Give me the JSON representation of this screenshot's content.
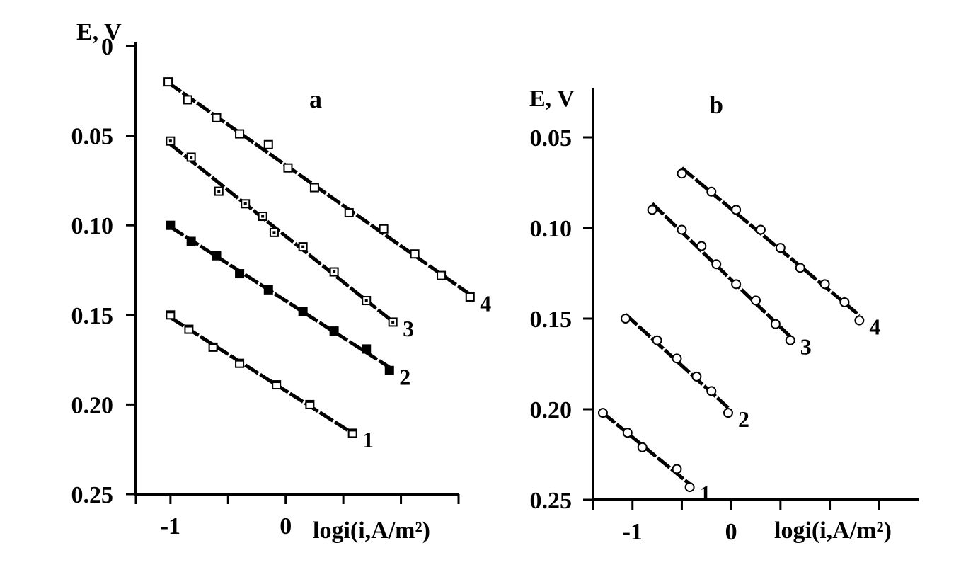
{
  "chart_data": [
    {
      "type": "scatter",
      "panel": "a",
      "title": "",
      "xlabel": "logi(i,A/m²)",
      "ylabel": "E, V",
      "xlim": [
        -1.3,
        1.5
      ],
      "ylim": [
        0,
        0.25
      ],
      "y_inverted": true,
      "x_ticks": [
        -1,
        0
      ],
      "x_tick_labels": [
        "-1",
        "0"
      ],
      "y_ticks": [
        0,
        0.05,
        0.1,
        0.15,
        0.2,
        0.25
      ],
      "y_tick_labels": [
        "0",
        "0.05",
        "0.10",
        "0.15",
        "0.20",
        "0.25"
      ],
      "grid": false,
      "series": [
        {
          "name": "1",
          "marker": "square-dot",
          "x": [
            -1.0,
            -0.84,
            -0.63,
            -0.4,
            -0.08,
            0.21,
            0.58
          ],
          "y": [
            0.15,
            0.158,
            0.168,
            0.177,
            0.189,
            0.2,
            0.216
          ]
        },
        {
          "name": "2",
          "marker": "square-filled",
          "x": [
            -1.0,
            -0.82,
            -0.6,
            -0.4,
            -0.15,
            0.15,
            0.42,
            0.7,
            0.9
          ],
          "y": [
            0.1,
            0.109,
            0.117,
            0.127,
            0.136,
            0.148,
            0.159,
            0.169,
            0.181
          ]
        },
        {
          "name": "3",
          "marker": "square-center",
          "x": [
            -1.0,
            -0.82,
            -0.58,
            -0.35,
            -0.2,
            -0.1,
            0.15,
            0.42,
            0.7,
            0.93
          ],
          "y": [
            0.053,
            0.062,
            0.081,
            0.088,
            0.095,
            0.104,
            0.112,
            0.126,
            0.142,
            0.154
          ]
        },
        {
          "name": "4",
          "marker": "square-open",
          "x": [
            -1.02,
            -0.85,
            -0.6,
            -0.4,
            -0.15,
            0.02,
            0.25,
            0.55,
            0.85,
            1.12,
            1.35,
            1.6
          ],
          "y": [
            0.02,
            0.03,
            0.04,
            0.049,
            0.055,
            0.068,
            0.079,
            0.093,
            0.102,
            0.116,
            0.128,
            0.14
          ]
        }
      ]
    },
    {
      "type": "scatter",
      "panel": "b",
      "title": "",
      "xlabel": "logi(i,A/m²)",
      "ylabel": "E, V",
      "xlim": [
        -1.4,
        1.9
      ],
      "ylim": [
        0.025,
        0.25
      ],
      "y_inverted": true,
      "x_ticks": [
        -1,
        0
      ],
      "x_tick_labels": [
        "-1",
        "0"
      ],
      "y_ticks": [
        0.05,
        0.1,
        0.15,
        0.2,
        0.25
      ],
      "y_tick_labels": [
        "0.05",
        "0.10",
        "0.15",
        "0.20",
        "0.25"
      ],
      "grid": false,
      "series": [
        {
          "name": "1",
          "marker": "circle-open",
          "x": [
            -1.3,
            -1.05,
            -0.9,
            -0.55,
            -0.42
          ],
          "y": [
            0.202,
            0.213,
            0.221,
            0.233,
            0.243
          ]
        },
        {
          "name": "2",
          "marker": "circle-open",
          "x": [
            -1.07,
            -0.75,
            -0.55,
            -0.35,
            -0.2,
            -0.03
          ],
          "y": [
            0.15,
            0.162,
            0.172,
            0.182,
            0.19,
            0.202
          ]
        },
        {
          "name": "3",
          "marker": "circle-open",
          "x": [
            -0.8,
            -0.5,
            -0.3,
            -0.15,
            0.05,
            0.25,
            0.45,
            0.6
          ],
          "y": [
            0.09,
            0.101,
            0.11,
            0.12,
            0.131,
            0.14,
            0.153,
            0.162
          ]
        },
        {
          "name": "4",
          "marker": "circle-open",
          "x": [
            -0.5,
            -0.2,
            0.05,
            0.3,
            0.5,
            0.7,
            0.95,
            1.15,
            1.3
          ],
          "y": [
            0.07,
            0.08,
            0.09,
            0.101,
            0.111,
            0.122,
            0.131,
            0.141,
            0.151
          ]
        }
      ]
    }
  ]
}
